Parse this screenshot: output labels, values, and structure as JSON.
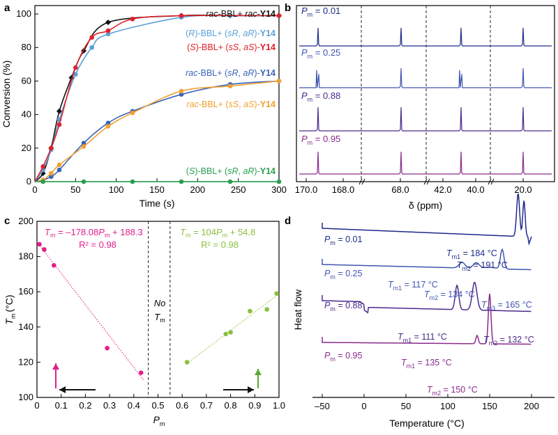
{
  "panels": {
    "a": {
      "letter": "a",
      "xlabel": "Time (s)",
      "ylabel": "Conversion (%)",
      "xticks": [
        "0",
        "50",
        "100",
        "150",
        "200",
        "250",
        "300"
      ],
      "yticks": [
        "0",
        "20",
        "40",
        "60",
        "80",
        "100"
      ],
      "legend_rows": [
        [
          {
            "t": "rac",
            "i": true,
            "b": false
          },
          {
            "t": "-BBL+ ",
            "i": false,
            "b": false
          },
          {
            "t": "rac",
            "i": true,
            "b": false
          },
          {
            "t": "-",
            "i": false,
            "b": false
          },
          {
            "t": "Y14",
            "i": false,
            "b": true
          }
        ],
        [
          {
            "t": "(",
            "i": false,
            "b": false
          },
          {
            "t": "R",
            "i": true,
            "b": false
          },
          {
            "t": ")-BBL+ (",
            "i": false,
            "b": false
          },
          {
            "t": "sR",
            "i": true,
            "b": false
          },
          {
            "t": ", ",
            "i": false,
            "b": false
          },
          {
            "t": "aR",
            "i": true,
            "b": false
          },
          {
            "t": ")-",
            "i": false,
            "b": false
          },
          {
            "t": "Y14",
            "i": false,
            "b": true
          }
        ],
        [
          {
            "t": "(",
            "i": false,
            "b": false
          },
          {
            "t": "S",
            "i": true,
            "b": false
          },
          {
            "t": ")-BBL+ (",
            "i": false,
            "b": false
          },
          {
            "t": "sS",
            "i": true,
            "b": false
          },
          {
            "t": ", ",
            "i": false,
            "b": false
          },
          {
            "t": "aS",
            "i": true,
            "b": false
          },
          {
            "t": ")-",
            "i": false,
            "b": false
          },
          {
            "t": "Y14",
            "i": false,
            "b": true
          }
        ],
        [
          {
            "t": "rac",
            "i": true,
            "b": false
          },
          {
            "t": "-BBL+ (",
            "i": false,
            "b": false
          },
          {
            "t": "sR",
            "i": true,
            "b": false
          },
          {
            "t": ", ",
            "i": false,
            "b": false
          },
          {
            "t": "aR",
            "i": true,
            "b": false
          },
          {
            "t": ")-",
            "i": false,
            "b": false
          },
          {
            "t": "Y14",
            "i": false,
            "b": true
          }
        ],
        [
          {
            "t": "rac",
            "i": true,
            "b": false
          },
          {
            "t": "-BBL+ (",
            "i": false,
            "b": false
          },
          {
            "t": "sS",
            "i": true,
            "b": false
          },
          {
            "t": ", ",
            "i": false,
            "b": false
          },
          {
            "t": "aS",
            "i": true,
            "b": false
          },
          {
            "t": ")-",
            "i": false,
            "b": false
          },
          {
            "t": "Y14",
            "i": false,
            "b": true
          }
        ],
        [
          {
            "t": "(",
            "i": false,
            "b": false
          },
          {
            "t": "S",
            "i": true,
            "b": false
          },
          {
            "t": ")-BBL+ (",
            "i": false,
            "b": false
          },
          {
            "t": "sR",
            "i": true,
            "b": false
          },
          {
            "t": ", ",
            "i": false,
            "b": false
          },
          {
            "t": "aR",
            "i": true,
            "b": false
          },
          {
            "t": ")-",
            "i": false,
            "b": false
          },
          {
            "t": "Y14",
            "i": false,
            "b": true
          }
        ]
      ]
    },
    "b": {
      "letter": "b",
      "xlabel": "δ (ppm)",
      "xticks": [
        "170.0",
        "168.0",
        "68.0",
        "42.0",
        "40.0",
        "20.0"
      ],
      "spectra_labels": [
        {
          "pre": "P",
          "sub": "m",
          "post": " = 0.01",
          "color": "#1e2a8a"
        },
        {
          "pre": "P",
          "sub": "m",
          "post": " = 0.25",
          "color": "#4055b0"
        },
        {
          "pre": "P",
          "sub": "m",
          "post": " = 0.88",
          "color": "#4a2a8c"
        },
        {
          "pre": "P",
          "sub": "m",
          "post": " = 0.95",
          "color": "#8a2a8c"
        }
      ]
    },
    "c": {
      "letter": "c",
      "xlabel_pre": "P",
      "xlabel_sub": "m",
      "ylabel_pre": "T",
      "ylabel_sub": "m",
      "ylabel_post": "(°C)",
      "xticks": [
        "0",
        "0.1",
        "0.2",
        "0.3",
        "0.4",
        "0.5",
        "0.6",
        "0.7",
        "0.8",
        "0.9",
        "1.0"
      ],
      "yticks": [
        "100",
        "120",
        "140",
        "160",
        "180",
        "200"
      ],
      "eq_left": {
        "pre": "T",
        "sub": "m",
        "mid": " = –178.08",
        "pre2": "P",
        "sub2": "m",
        "post": " + 188.3"
      },
      "r2_left": "R² = 0.98",
      "eq_right": {
        "pre": "T",
        "sub": "m",
        "mid": " = 104",
        "pre2": "P",
        "sub2": "m",
        "post": " + 54.8"
      },
      "r2_right": "R² = 0.98",
      "no_tm": "No",
      "no_tm2_pre": "T",
      "no_tm2_sub": "m"
    },
    "d": {
      "letter": "d",
      "xlabel": "Temperature (°C)",
      "ylabel": "Heat flow",
      "xticks": [
        "–50",
        "0",
        "50",
        "100",
        "150",
        "200"
      ],
      "labels": {
        "p1": {
          "pre": "P",
          "sub": "m",
          "post": " = 0.01"
        },
        "p2": {
          "pre": "P",
          "sub": "m",
          "post": " = 0.25"
        },
        "p3": {
          "pre": "P",
          "sub": "m",
          "post": " = 0.88"
        },
        "p4": {
          "pre": "P",
          "sub": "m",
          "post": " = 0.95"
        },
        "t1a": {
          "pre": "T",
          "sub": "m1",
          "post": " = 184 °C"
        },
        "t1b": {
          "pre": "T",
          "sub": "m2",
          "post": " = 191 °C"
        },
        "t2a": {
          "pre": "T",
          "sub": "m1",
          "post": " = 117 °C"
        },
        "t2b": {
          "pre": "T",
          "sub": "m2",
          "post": " = 134 °C"
        },
        "t2c": {
          "pre": "T",
          "sub": "m3",
          "post": " = 165 °C"
        },
        "t3a": {
          "pre": "T",
          "sub": "m1",
          "post": " = 111 °C"
        },
        "t3b": {
          "pre": "T",
          "sub": "m2",
          "post": " = 132 °C"
        },
        "t4a": {
          "pre": "T",
          "sub": "m1",
          "post": " = 135 °C"
        },
        "t4b": {
          "pre": "T",
          "sub": "m2",
          "post": " = 150 °C"
        }
      }
    }
  },
  "chart_data": [
    {
      "panel": "a",
      "type": "line",
      "xlabel": "Time (s)",
      "ylabel": "Conversion (%)",
      "xlim": [
        0,
        300
      ],
      "ylim": [
        0,
        105
      ],
      "series": [
        {
          "name": "rac-BBL+ rac-Y14",
          "color": "#111111",
          "marker": "diamond",
          "x": [
            0,
            10,
            20,
            30,
            45,
            60,
            90,
            180,
            240,
            300
          ],
          "y": [
            0,
            5,
            20,
            42,
            62,
            78,
            95,
            99,
            99,
            99
          ]
        },
        {
          "name": "(R)-BBL+ (sR, aR)-Y14",
          "color": "#5aa0d8",
          "marker": "circle",
          "x": [
            0,
            10,
            20,
            30,
            50,
            70,
            90,
            180,
            240,
            300
          ],
          "y": [
            0,
            7,
            19,
            37,
            64,
            80,
            88,
            98,
            99,
            99
          ]
        },
        {
          "name": "(S)-BBL+ (sS, aS)-Y14",
          "color": "#e0202a",
          "marker": "circle",
          "x": [
            0,
            10,
            20,
            30,
            50,
            70,
            90,
            120,
            180,
            300
          ],
          "y": [
            0,
            9,
            20,
            34,
            68,
            86,
            90,
            97,
            99,
            99
          ]
        },
        {
          "name": "rac-BBL+ (sR, aR)-Y14",
          "color": "#3a64b8",
          "marker": "circle",
          "x": [
            0,
            10,
            20,
            30,
            60,
            90,
            120,
            180,
            240,
            300
          ],
          "y": [
            0,
            1,
            3,
            7,
            23,
            35,
            42,
            52,
            58,
            60
          ]
        },
        {
          "name": "rac-BBL+ (sS, aS)-Y14",
          "color": "#f0a030",
          "marker": "circle",
          "x": [
            0,
            10,
            20,
            30,
            60,
            90,
            120,
            180,
            240,
            300
          ],
          "y": [
            0,
            1,
            5,
            10,
            21,
            33,
            41,
            54,
            57,
            60
          ]
        },
        {
          "name": "(S)-BBL+ (sR, aR)-Y14",
          "color": "#2aa050",
          "marker": "circle",
          "x": [
            0,
            10,
            60,
            120,
            180,
            240,
            300
          ],
          "y": [
            0,
            0,
            0,
            0,
            0,
            0,
            0
          ]
        }
      ]
    },
    {
      "panel": "c",
      "type": "scatter",
      "xlabel": "Pm",
      "ylabel": "Tm (°C)",
      "xlim": [
        0,
        1.0
      ],
      "ylim": [
        100,
        200
      ],
      "series": [
        {
          "name": "left",
          "color": "#e0208a",
          "x": [
            0.01,
            0.03,
            0.07,
            0.29,
            0.43
          ],
          "y": [
            187,
            184,
            175,
            128,
            114
          ]
        },
        {
          "name": "right",
          "color": "#8ac040",
          "x": [
            0.62,
            0.78,
            0.8,
            0.88,
            0.95,
            0.99
          ],
          "y": [
            120,
            136,
            137,
            149,
            150,
            159
          ]
        }
      ],
      "fits": [
        {
          "slope": -178.08,
          "intercept": 188.3,
          "r2": 0.98,
          "x_range": [
            0,
            0.44
          ]
        },
        {
          "slope": 104,
          "intercept": 54.8,
          "r2": 0.98,
          "x_range": [
            0.62,
            1.0
          ]
        }
      ]
    },
    {
      "panel": "d",
      "type": "line",
      "xlabel": "Temperature (°C)",
      "ylabel": "Heat flow",
      "xlim": [
        -55,
        205
      ],
      "series": [
        {
          "name": "Pm = 0.01",
          "color": "#1e2a8a",
          "peaks_C": [
            184,
            191
          ]
        },
        {
          "name": "Pm = 0.25",
          "color": "#4055b0",
          "peaks_C": [
            117,
            134,
            165
          ]
        },
        {
          "name": "Pm = 0.88",
          "color": "#4a2a8c",
          "peaks_C": [
            111,
            132
          ]
        },
        {
          "name": "Pm = 0.95",
          "color": "#8a2a8c",
          "peaks_C": [
            135,
            150
          ]
        }
      ]
    }
  ]
}
